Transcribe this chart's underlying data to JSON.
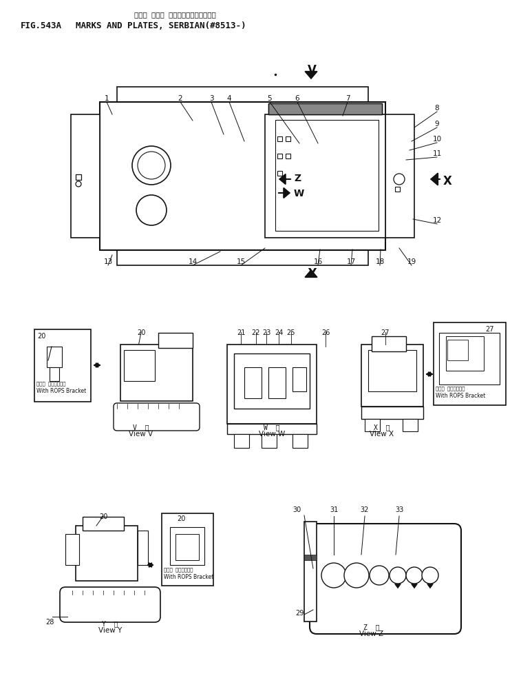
{
  "title_jp": "マーク および プレート（セルビアコ）",
  "title_fig": "FIG.543A",
  "title_en": "MARKS AND PLATES, SERBIAN(#8513-)",
  "lc": "#111111",
  "bg": "#ffffff"
}
